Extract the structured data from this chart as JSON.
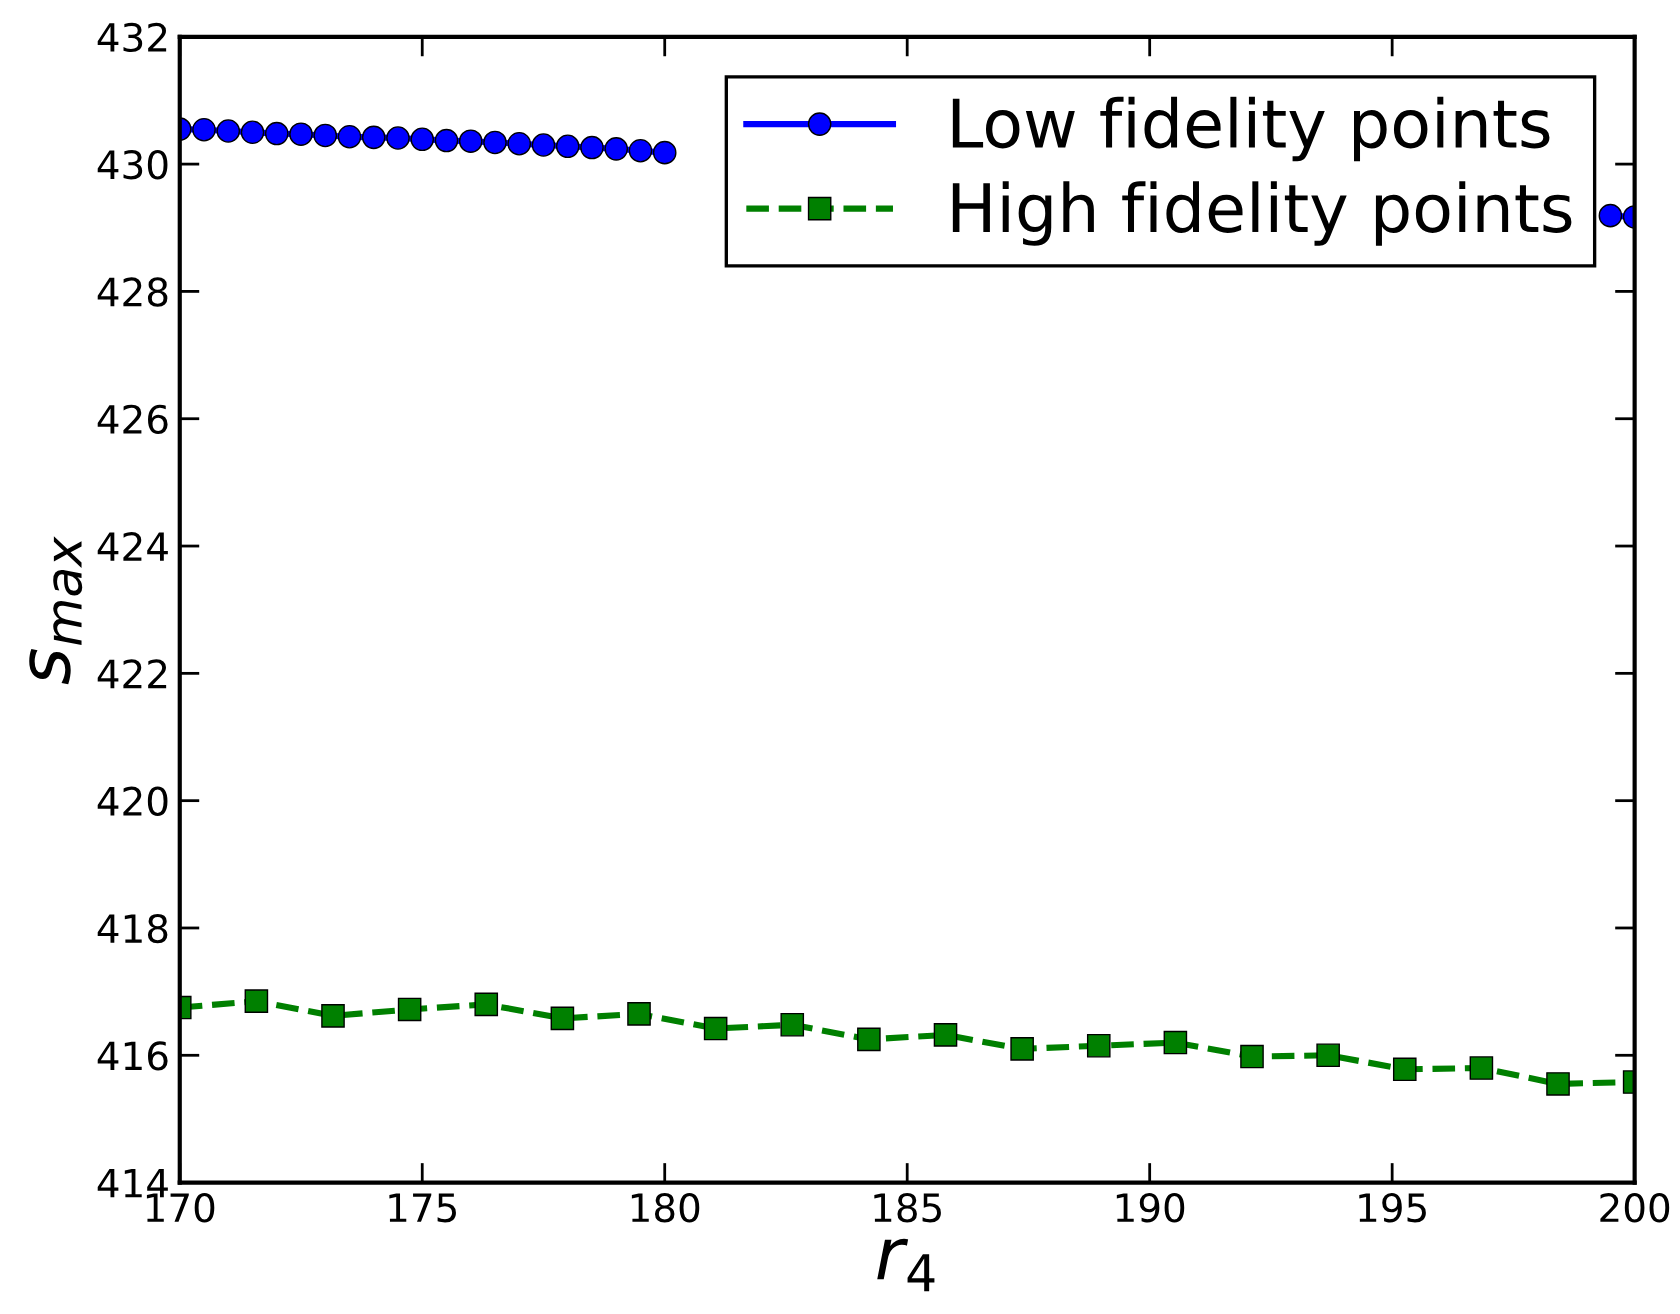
{
  "chart_data": {
    "type": "line",
    "xlabel": "r$_{4}$",
    "ylabel": "s$_{max}$",
    "xlim": [
      170,
      200
    ],
    "xticks": [
      170,
      175,
      180,
      185,
      190,
      195,
      200
    ],
    "ylim": [
      414,
      432
    ],
    "yticks": [
      414,
      416,
      418,
      420,
      422,
      424,
      426,
      428,
      430,
      432
    ],
    "grid": false,
    "legend": "top right",
    "series": [
      {
        "name": "Low fidelity points",
        "color": "#0000ff",
        "marker": "circle",
        "line_style": "solid",
        "x": [
          170,
          170.5,
          171,
          171.5,
          172,
          172.5,
          173,
          173.5,
          174,
          174.5,
          175,
          175.5,
          176,
          176.5,
          177,
          177.5,
          178,
          178.5,
          179,
          179.5,
          180,
          180.5,
          199.5,
          200
        ],
        "values": [
          430.55,
          430.54,
          430.52,
          430.5,
          430.48,
          430.47,
          430.45,
          430.43,
          430.42,
          430.41,
          430.39,
          430.37,
          430.36,
          430.34,
          430.32,
          430.3,
          430.28,
          430.26,
          430.24,
          430.21,
          430.18,
          null,
          429.19,
          429.17
        ]
      },
      {
        "name": "High fidelity points",
        "color": "#008000",
        "marker": "square",
        "line_style": "dashed",
        "x": [
          170,
          171.58,
          173.16,
          174.74,
          176.32,
          177.89,
          179.47,
          181.05,
          182.63,
          184.21,
          185.79,
          187.37,
          188.95,
          190.53,
          192.11,
          193.68,
          195.26,
          196.84,
          198.42,
          200
        ],
        "values": [
          416.75,
          416.85,
          416.62,
          416.72,
          416.8,
          416.58,
          416.65,
          416.42,
          416.48,
          416.25,
          416.32,
          416.1,
          416.15,
          416.2,
          415.98,
          416.0,
          415.78,
          415.8,
          415.55,
          415.58
        ]
      }
    ]
  }
}
